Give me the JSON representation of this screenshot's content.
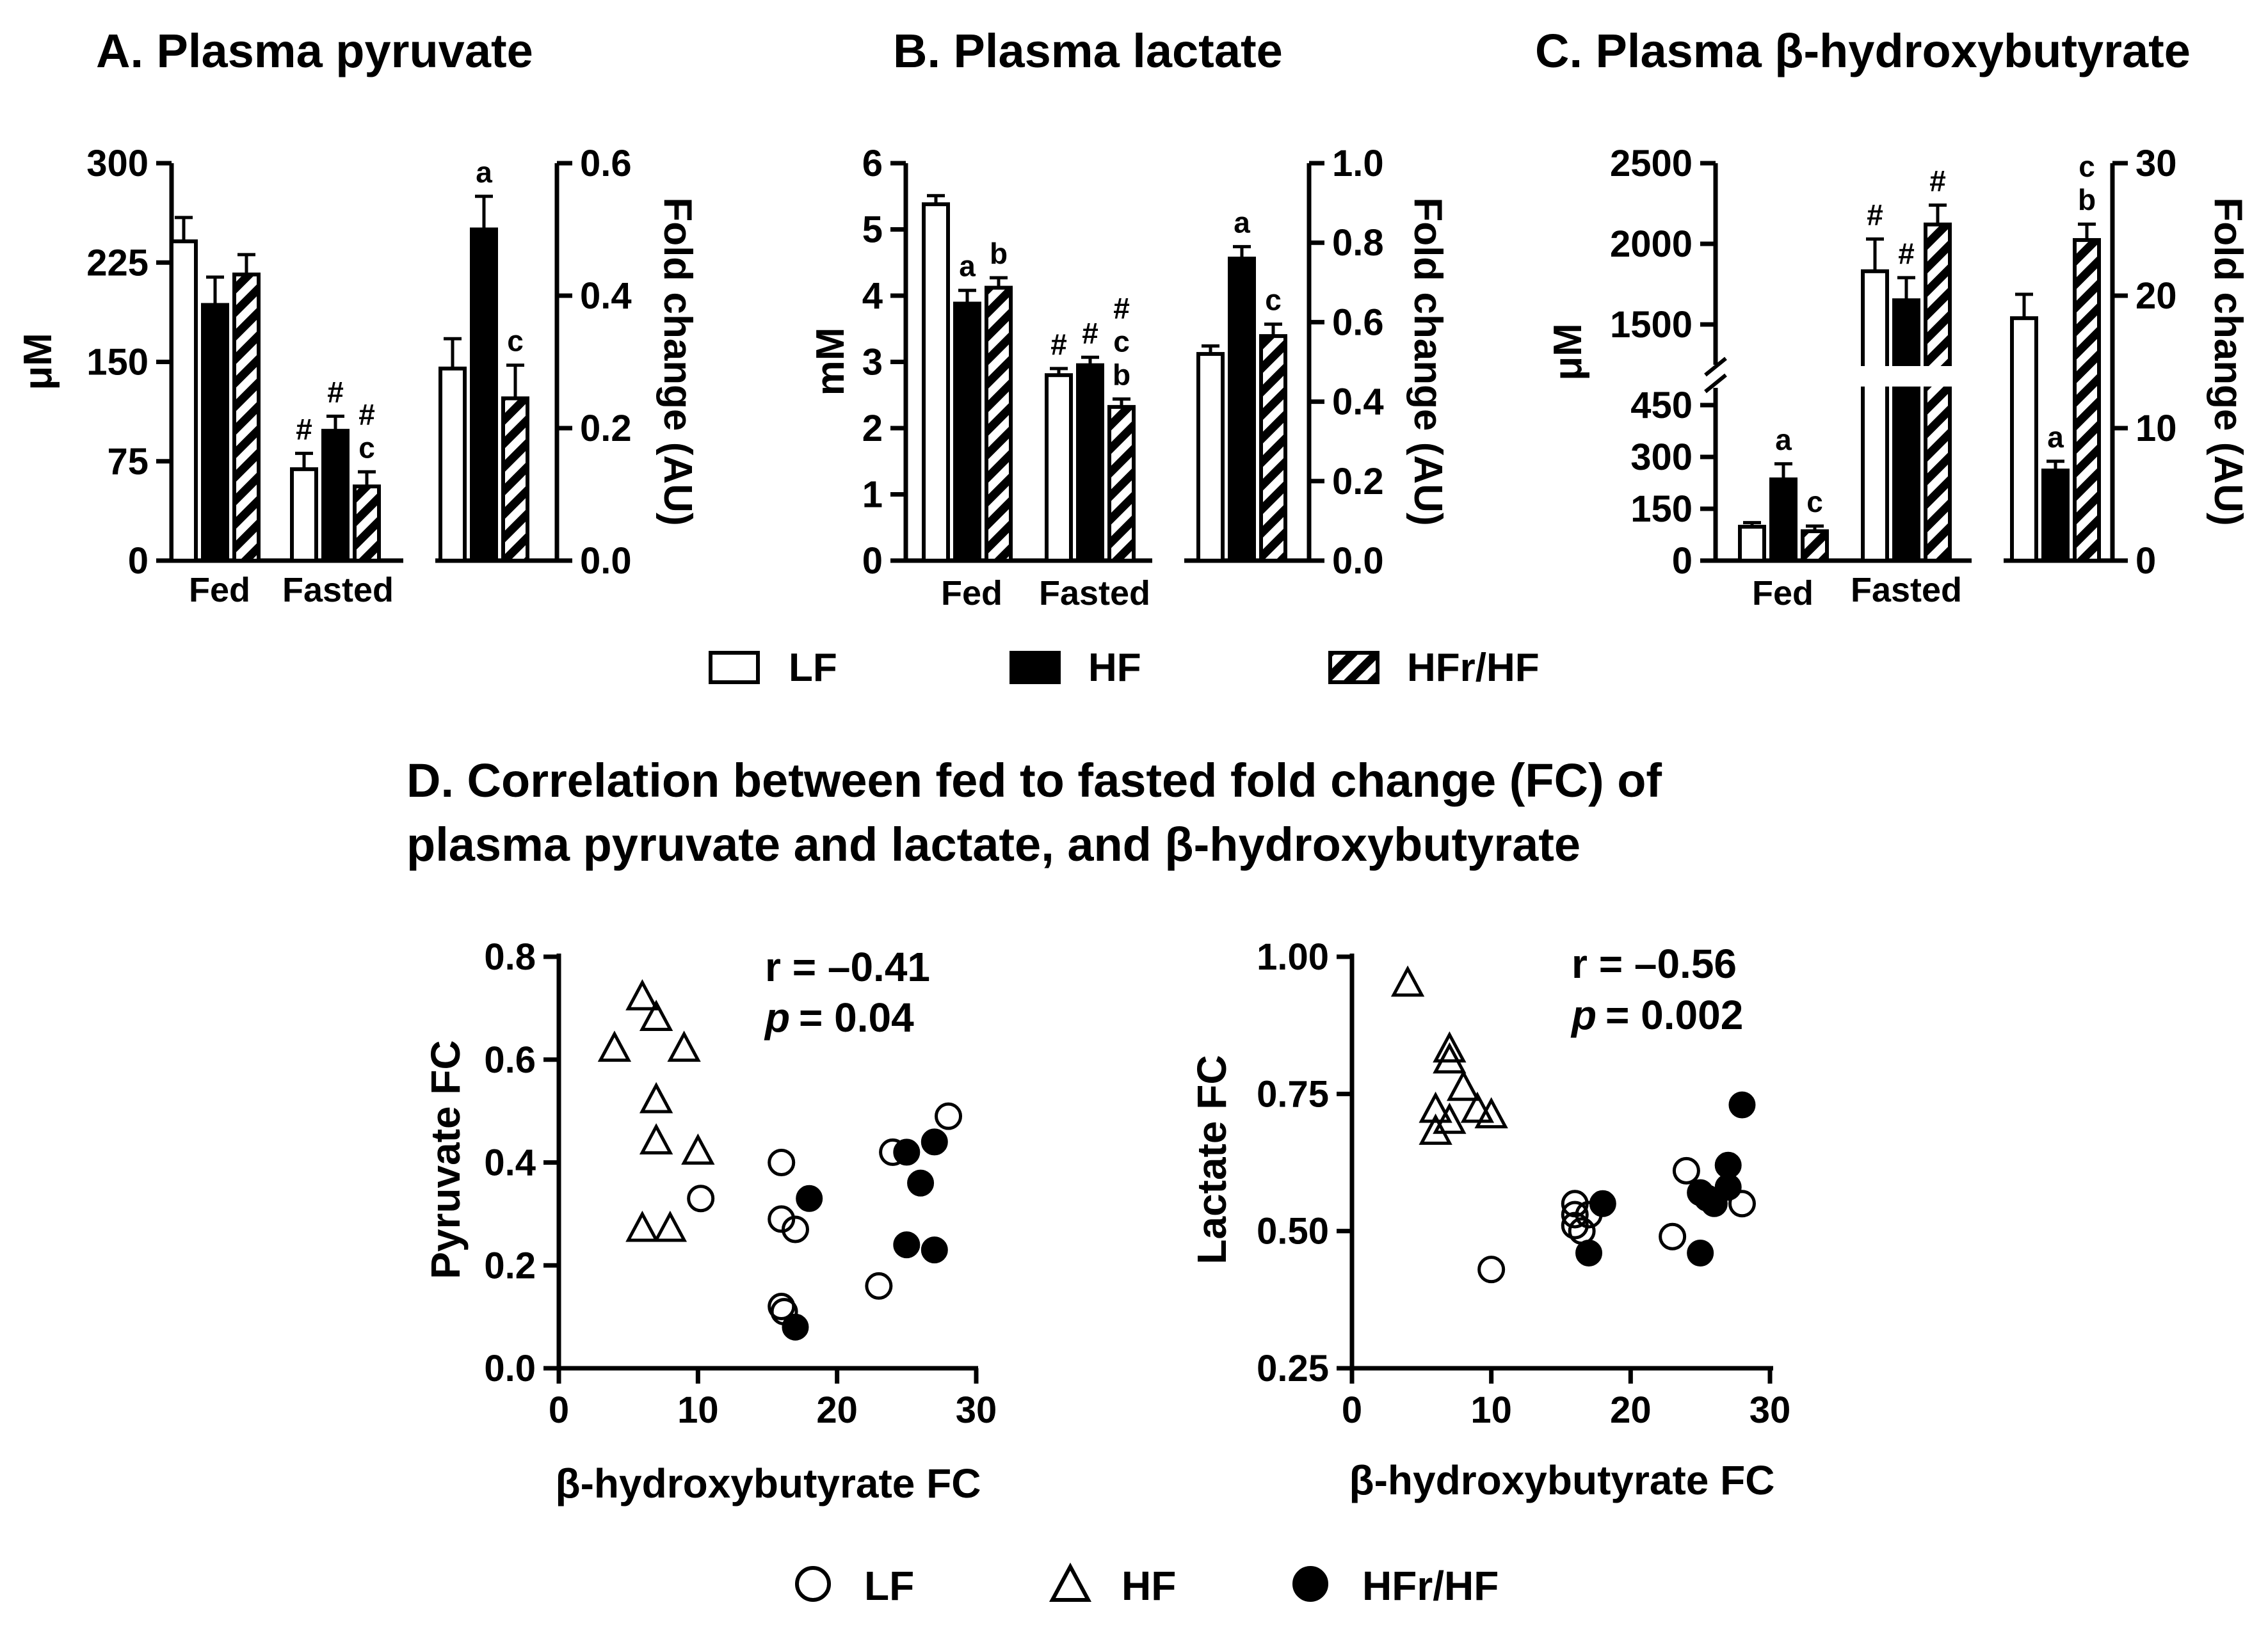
{
  "colors": {
    "ink": "#000000",
    "background": "#ffffff"
  },
  "bar_legend": {
    "items": [
      "LF",
      "HF",
      "HFr/HF"
    ]
  },
  "scatter_legend": {
    "items": [
      "LF",
      "HF",
      "HFr/HF"
    ]
  },
  "panel_d_title": [
    "D. Correlation between fed to fasted fold change (FC) of",
    "plasma pyruvate and lactate, and β-hydroxybutyrate"
  ],
  "chart_data": [
    {
      "id": "A",
      "type": "bar",
      "title": "A. Plasma pyruvate",
      "ylabel_left": "μM",
      "ylabel_right": "Fold change (AU)",
      "left_axis": {
        "min": 0,
        "max": 300,
        "ticks": [
          0,
          75,
          150,
          225,
          300
        ]
      },
      "right_axis": {
        "min": 0,
        "max": 0.6,
        "ticks": [
          "0.0",
          "0.2",
          "0.4",
          "0.6"
        ]
      },
      "categories": [
        "Fed",
        "Fasted"
      ],
      "series": [
        "LF",
        "HF",
        "HFr/HF"
      ],
      "groups": [
        {
          "label": "Fed",
          "axis": "left",
          "bars": [
            {
              "series": "LF",
              "value": 241,
              "sem": 18,
              "labels": []
            },
            {
              "series": "HF",
              "value": 193,
              "sem": 21,
              "labels": []
            },
            {
              "series": "HFr/HF",
              "value": 216,
              "sem": 15,
              "labels": []
            }
          ]
        },
        {
          "label": "Fasted",
          "axis": "left",
          "bars": [
            {
              "series": "LF",
              "value": 69,
              "sem": 12,
              "labels": [
                "#"
              ]
            },
            {
              "series": "HF",
              "value": 98,
              "sem": 11,
              "labels": [
                "#"
              ]
            },
            {
              "series": "HFr/HF",
              "value": 56,
              "sem": 11,
              "labels": [
                "#",
                "c"
              ]
            }
          ]
        },
        {
          "label": "",
          "axis": "right",
          "bars": [
            {
              "series": "LF",
              "value": 0.29,
              "sem": 0.045,
              "labels": []
            },
            {
              "series": "HF",
              "value": 0.5,
              "sem": 0.05,
              "labels": [
                "a"
              ]
            },
            {
              "series": "HFr/HF",
              "value": 0.245,
              "sem": 0.05,
              "labels": [
                "c"
              ]
            }
          ]
        }
      ]
    },
    {
      "id": "B",
      "type": "bar",
      "title": "B. Plasma lactate",
      "ylabel_left": "mM",
      "ylabel_right": "Fold change (AU)",
      "left_axis": {
        "min": 0,
        "max": 6,
        "ticks": [
          0,
          1,
          2,
          3,
          4,
          5,
          6
        ]
      },
      "right_axis": {
        "min": 0,
        "max": 1.0,
        "ticks": [
          "0.0",
          "0.2",
          "0.4",
          "0.6",
          "0.8",
          "1.0"
        ]
      },
      "categories": [
        "Fed",
        "Fasted"
      ],
      "series": [
        "LF",
        "HF",
        "HFr/HF"
      ],
      "groups": [
        {
          "label": "Fed",
          "axis": "left",
          "bars": [
            {
              "series": "LF",
              "value": 5.38,
              "sem": 0.13,
              "labels": []
            },
            {
              "series": "HF",
              "value": 3.88,
              "sem": 0.2,
              "labels": [
                "a"
              ]
            },
            {
              "series": "HFr/HF",
              "value": 4.12,
              "sem": 0.15,
              "labels": [
                "b"
              ]
            }
          ]
        },
        {
          "label": "Fasted",
          "axis": "left",
          "bars": [
            {
              "series": "LF",
              "value": 2.8,
              "sem": 0.1,
              "labels": [
                "#"
              ]
            },
            {
              "series": "HF",
              "value": 2.95,
              "sem": 0.12,
              "labels": [
                "#"
              ]
            },
            {
              "series": "HFr/HF",
              "value": 2.32,
              "sem": 0.12,
              "labels": [
                "#",
                "c",
                "b"
              ]
            }
          ]
        },
        {
          "label": "",
          "axis": "right",
          "bars": [
            {
              "series": "LF",
              "value": 0.52,
              "sem": 0.02,
              "labels": []
            },
            {
              "series": "HF",
              "value": 0.76,
              "sem": 0.03,
              "labels": [
                "a"
              ]
            },
            {
              "series": "HFr/HF",
              "value": 0.565,
              "sem": 0.03,
              "labels": [
                "c"
              ]
            }
          ]
        }
      ]
    },
    {
      "id": "C",
      "type": "bar",
      "title": "C. Plasma β-hydroxybutyrate",
      "ylabel_left": "μM",
      "ylabel_right": "Fold change (AU)",
      "left_axis": {
        "broken": true,
        "lower": {
          "min": 0,
          "max": 500,
          "ticks": [
            0,
            150,
            300,
            450
          ]
        },
        "upper": {
          "min": 1250,
          "max": 2500,
          "ticks": [
            1500,
            2000,
            2500
          ]
        }
      },
      "right_axis": {
        "min": 0,
        "max": 30,
        "ticks": [
          "0",
          "10",
          "20",
          "30"
        ]
      },
      "categories": [
        "Fed",
        "Fasted"
      ],
      "series": [
        "LF",
        "HF",
        "HFr/HF"
      ],
      "groups": [
        {
          "label": "Fed",
          "axis": "left",
          "bars": [
            {
              "series": "LF",
              "value": 98,
              "sem": 12,
              "labels": []
            },
            {
              "series": "HF",
              "value": 235,
              "sem": 45,
              "labels": [
                "a"
              ]
            },
            {
              "series": "HFr/HF",
              "value": 85,
              "sem": 15,
              "labels": [
                "c"
              ]
            }
          ]
        },
        {
          "label": "Fasted",
          "axis": "left",
          "bars": [
            {
              "series": "LF",
              "value": 1830,
              "sem": 200,
              "labels": [
                "#"
              ]
            },
            {
              "series": "HF",
              "value": 1650,
              "sem": 140,
              "labels": [
                "#"
              ]
            },
            {
              "series": "HFr/HF",
              "value": 2120,
              "sem": 120,
              "labels": [
                "#"
              ]
            }
          ]
        },
        {
          "label": "",
          "axis": "right",
          "bars": [
            {
              "series": "LF",
              "value": 18.3,
              "sem": 1.8,
              "labels": []
            },
            {
              "series": "HF",
              "value": 6.8,
              "sem": 0.7,
              "labels": [
                "a"
              ]
            },
            {
              "series": "HFr/HF",
              "value": 24.2,
              "sem": 1.2,
              "labels": [
                "c",
                "b"
              ]
            }
          ]
        }
      ]
    },
    {
      "id": "D1",
      "type": "scatter",
      "xlabel": "β-hydroxybutyrate FC",
      "ylabel": "Pyruvate FC",
      "x_axis": {
        "min": 0,
        "max": 30,
        "ticks": [
          "0",
          "10",
          "20",
          "30"
        ]
      },
      "y_axis": {
        "min": 0,
        "max": 0.8,
        "ticks": [
          "0.0",
          "0.2",
          "0.4",
          "0.6",
          "0.8"
        ]
      },
      "stats": {
        "r": "r = –0.41",
        "p_label": "p",
        "p_value": "= 0.04"
      },
      "series": [
        {
          "name": "LF",
          "marker": "open-circle",
          "points": [
            [
              10.2,
              0.33
            ],
            [
              16,
              0.4
            ],
            [
              16,
              0.29
            ],
            [
              17,
              0.27
            ],
            [
              16,
              0.12
            ],
            [
              16.2,
              0.11
            ],
            [
              23,
              0.16
            ],
            [
              24,
              0.42
            ],
            [
              28,
              0.49
            ]
          ]
        },
        {
          "name": "HF",
          "marker": "open-triangle",
          "points": [
            [
              6,
              0.72
            ],
            [
              7,
              0.68
            ],
            [
              4,
              0.62
            ],
            [
              9,
              0.62
            ],
            [
              7,
              0.52
            ],
            [
              7,
              0.44
            ],
            [
              10,
              0.42
            ],
            [
              6,
              0.27
            ],
            [
              8,
              0.27
            ]
          ]
        },
        {
          "name": "HFr/HF",
          "marker": "filled-circle",
          "points": [
            [
              18,
              0.33
            ],
            [
              17,
              0.08
            ],
            [
              25,
              0.42
            ],
            [
              27,
              0.44
            ],
            [
              26,
              0.36
            ],
            [
              25,
              0.24
            ],
            [
              27,
              0.23
            ]
          ]
        }
      ]
    },
    {
      "id": "D2",
      "type": "scatter",
      "xlabel": "β-hydroxybutyrate FC",
      "ylabel": "Lactate FC",
      "x_axis": {
        "min": 0,
        "max": 30,
        "ticks": [
          "0",
          "10",
          "20",
          "30"
        ]
      },
      "y_axis": {
        "min": 0.25,
        "max": 1.0,
        "ticks": [
          "0.25",
          "0.50",
          "0.75",
          "1.00"
        ]
      },
      "stats": {
        "r": "r = –0.56",
        "p_label": "p",
        "p_value": "= 0.002"
      },
      "series": [
        {
          "name": "LF",
          "marker": "open-circle",
          "points": [
            [
              10,
              0.43
            ],
            [
              16,
              0.55
            ],
            [
              16,
              0.53
            ],
            [
              16,
              0.51
            ],
            [
              16.5,
              0.5
            ],
            [
              17,
              0.53
            ],
            [
              23,
              0.49
            ],
            [
              24,
              0.61
            ],
            [
              28,
              0.55
            ]
          ]
        },
        {
          "name": "HF",
          "marker": "open-triangle",
          "points": [
            [
              4,
              0.95
            ],
            [
              7,
              0.83
            ],
            [
              7,
              0.81
            ],
            [
              8,
              0.76
            ],
            [
              6,
              0.72
            ],
            [
              9,
              0.72
            ],
            [
              10,
              0.71
            ],
            [
              7,
              0.7
            ],
            [
              6,
              0.68
            ]
          ]
        },
        {
          "name": "HFr/HF",
          "marker": "filled-circle",
          "points": [
            [
              18,
              0.55
            ],
            [
              17,
              0.46
            ],
            [
              25,
              0.57
            ],
            [
              25.5,
              0.56
            ],
            [
              26,
              0.55
            ],
            [
              27,
              0.62
            ],
            [
              27,
              0.58
            ],
            [
              28,
              0.73
            ],
            [
              25,
              0.46
            ]
          ]
        }
      ]
    }
  ]
}
